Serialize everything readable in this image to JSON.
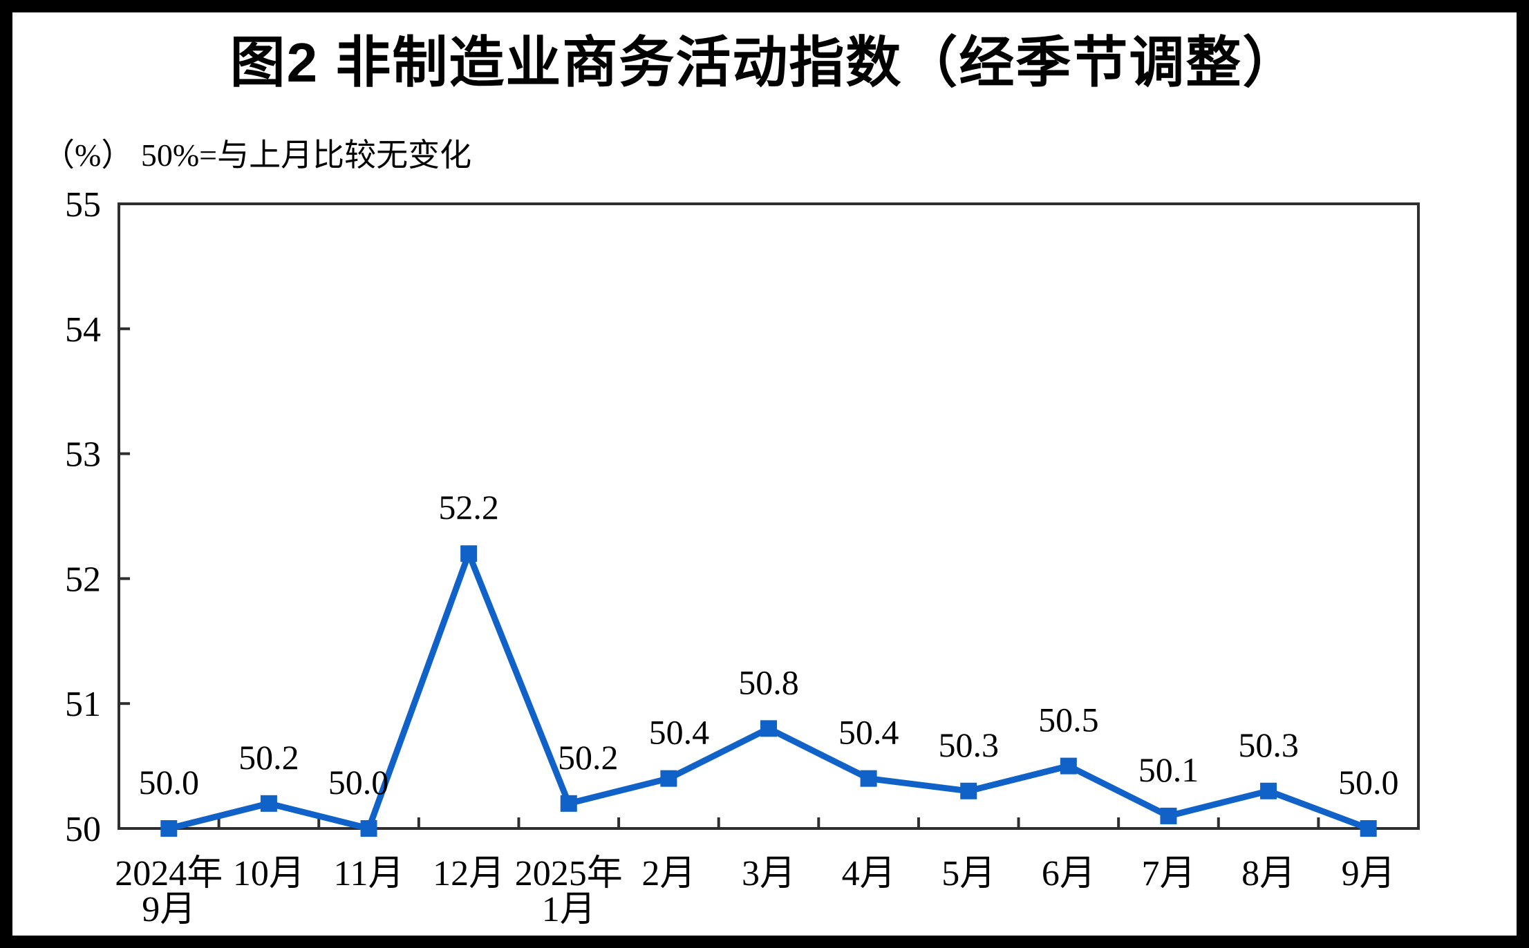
{
  "chart_data": {
    "type": "line",
    "title": "图2  非制造业商务活动指数（经季节调整）",
    "unit_note": "（%） 50%=与上月比较无变化",
    "categories": [
      [
        "2024年",
        "9月"
      ],
      [
        "10月"
      ],
      [
        "11月"
      ],
      [
        "12月"
      ],
      [
        "2025年",
        "1月"
      ],
      [
        "2月"
      ],
      [
        "3月"
      ],
      [
        "4月"
      ],
      [
        "5月"
      ],
      [
        "6月"
      ],
      [
        "7月"
      ],
      [
        "8月"
      ],
      [
        "9月"
      ]
    ],
    "series": [
      {
        "name": "非制造业商务活动指数",
        "values": [
          50.0,
          50.2,
          50.0,
          52.2,
          50.2,
          50.4,
          50.8,
          50.4,
          50.3,
          50.5,
          50.1,
          50.3,
          50.0
        ]
      }
    ],
    "data_labels": [
      "50.0",
      "50.2",
      "50.0",
      "52.2",
      "50.2",
      "50.4",
      "50.8",
      "50.4",
      "50.3",
      "50.5",
      "50.1",
      "50.3",
      "50.0"
    ],
    "ylim": [
      50,
      55
    ],
    "yticks": [
      50,
      51,
      52,
      53,
      54,
      55
    ],
    "grid": false,
    "legend_position": "none",
    "marker": "square",
    "colors": {
      "line": "#1062C8",
      "marker": "#1062C8",
      "axis": "#2E2E2E",
      "text": "#000000",
      "background": "#FFFFFF",
      "frame": "#000000"
    }
  }
}
